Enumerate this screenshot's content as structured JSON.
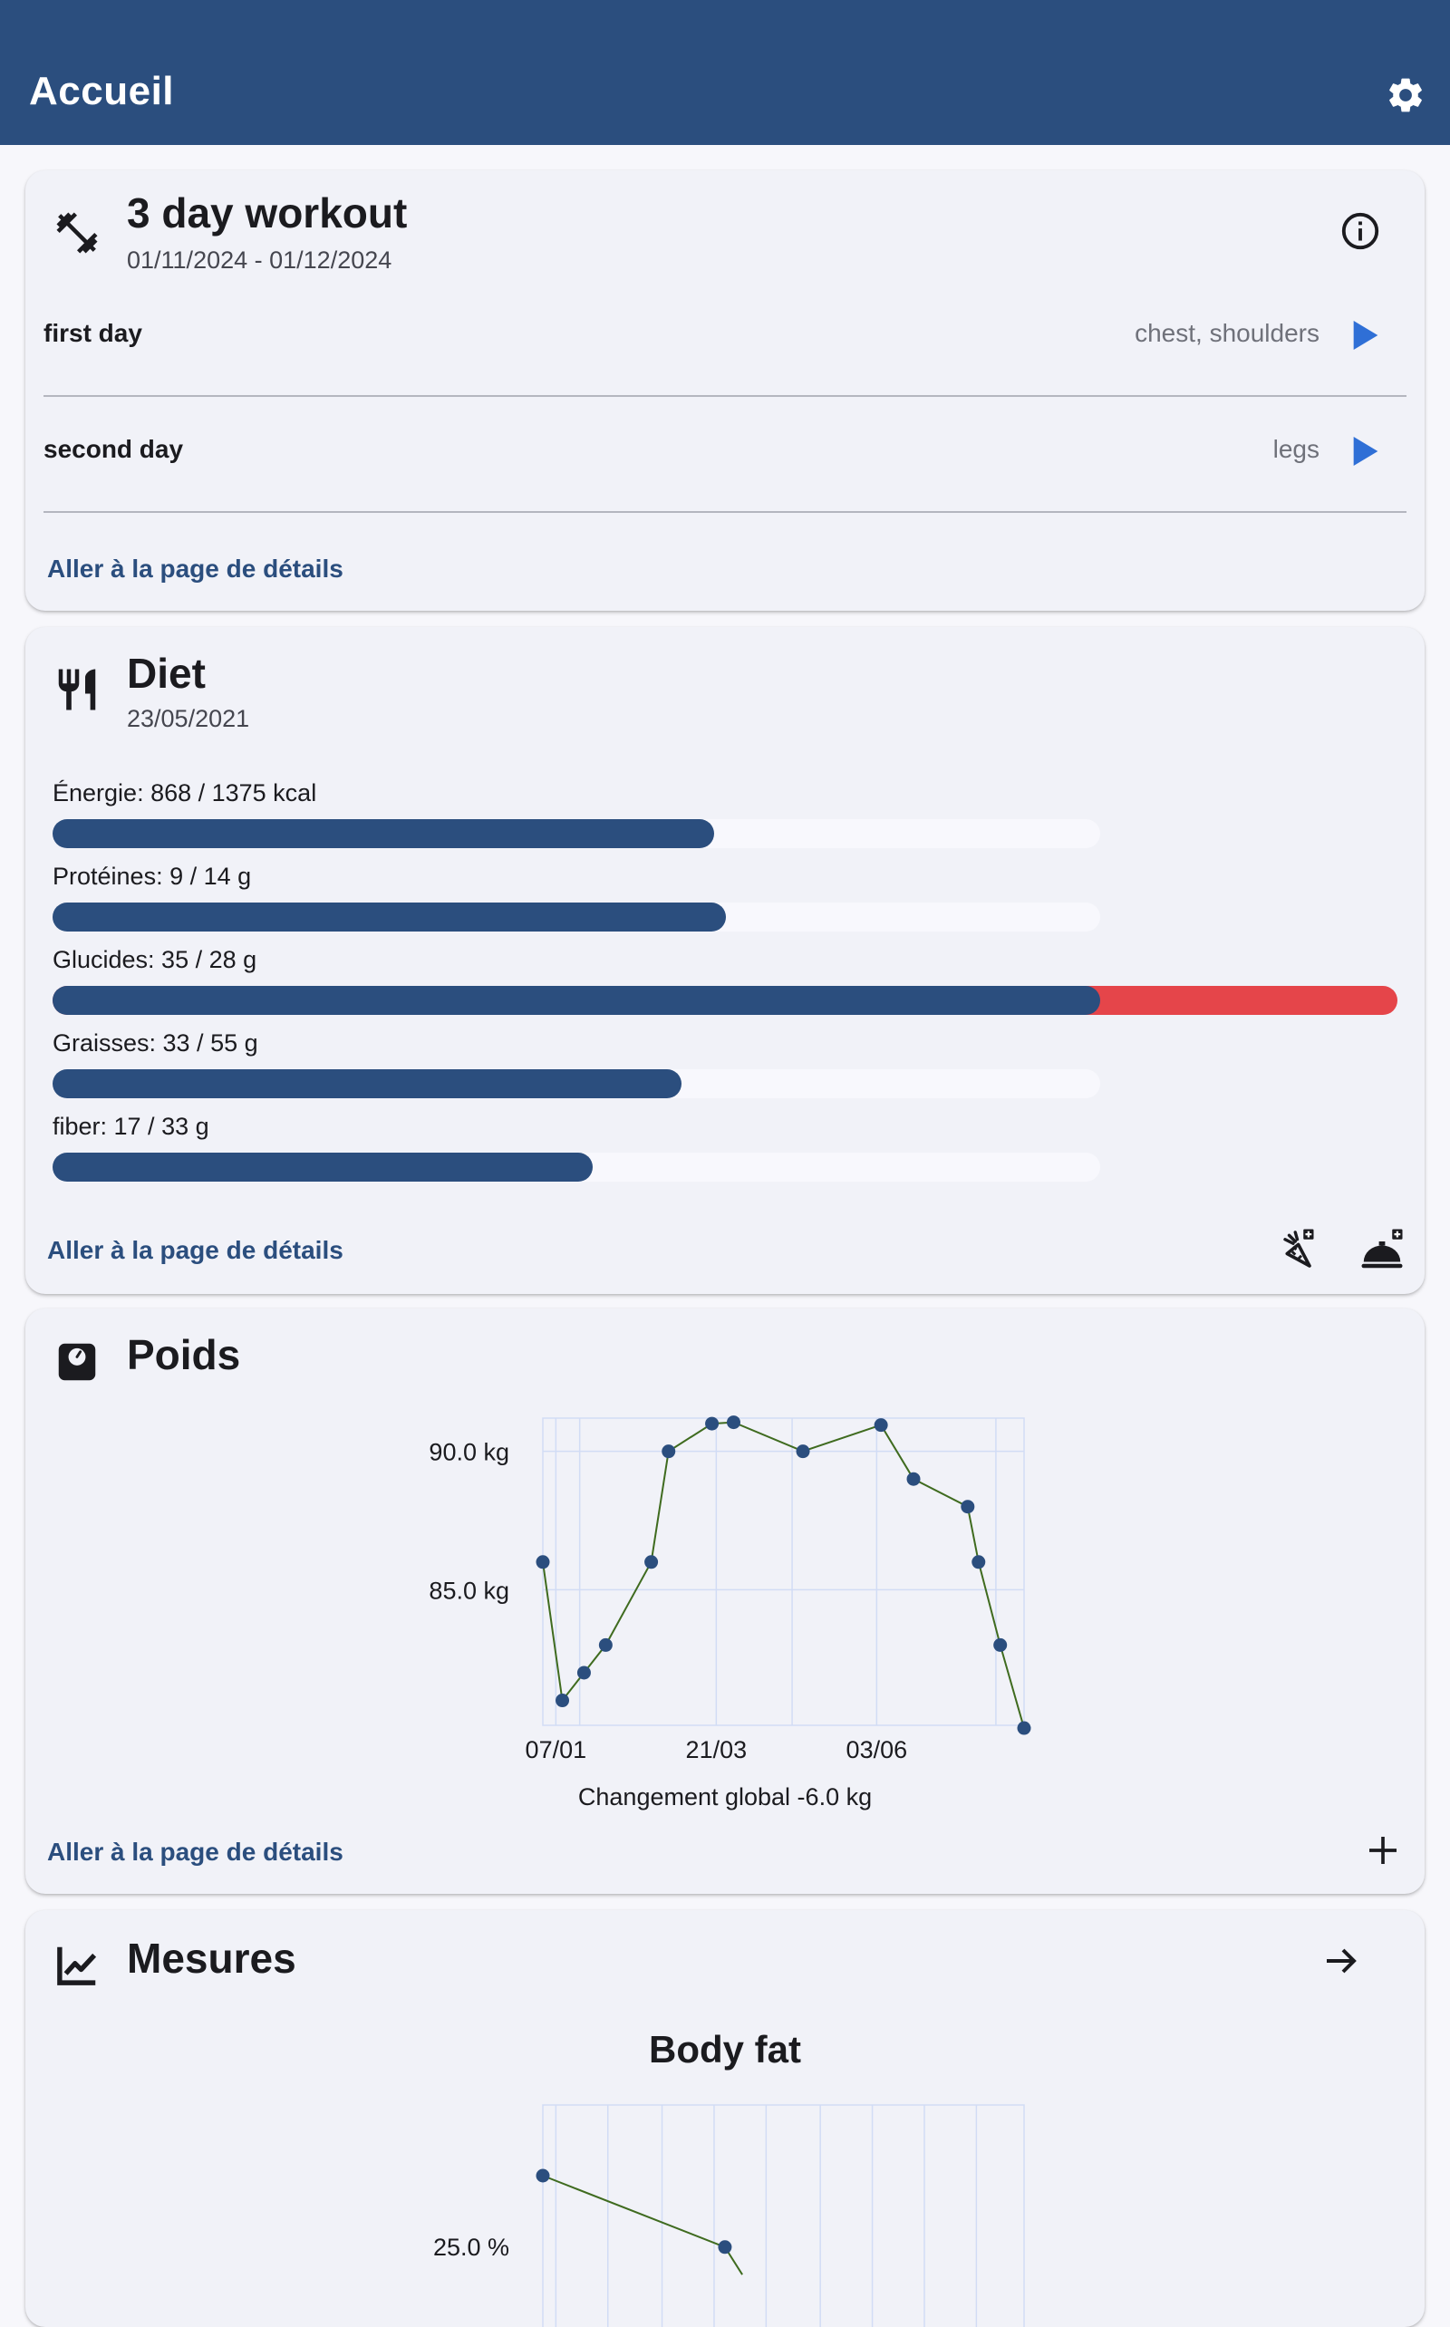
{
  "appbar": {
    "title": "Accueil",
    "settings_icon": "gear-icon"
  },
  "workout": {
    "title": "3 day workout",
    "dates": "01/11/2024 - 01/12/2024",
    "icon": "dumbbell-icon",
    "info_icon": "info-icon",
    "days": [
      {
        "name": "first day",
        "muscles": "chest, shoulders"
      },
      {
        "name": "second day",
        "muscles": "legs"
      }
    ],
    "details_link": "Aller à la page de détails"
  },
  "diet": {
    "title": "Diet",
    "date": "23/05/2021",
    "icon": "fork-knife-icon",
    "nutrients": [
      {
        "label": "Énergie: 868 / 1375 kcal",
        "value": 868,
        "goal": 1375
      },
      {
        "label": "Protéines: 9 / 14 g",
        "value": 9,
        "goal": 14
      },
      {
        "label": "Glucides: 35 / 28 g",
        "value": 35,
        "goal": 28
      },
      {
        "label": "Graisses: 33 / 55 g",
        "value": 33,
        "goal": 55
      },
      {
        "label": "fiber: 17 / 33 g",
        "value": 17,
        "goal": 33
      }
    ],
    "colors": {
      "fill": "#2b4e7e",
      "over": "#e5454a",
      "track": "#f8f8fd"
    },
    "details_link": "Aller à la page de détails",
    "actions": [
      "add-ingredient-icon",
      "add-meal-icon"
    ]
  },
  "weight": {
    "title": "Poids",
    "icon": "scale-icon",
    "details_link": "Aller à la page de détails",
    "add_icon": "plus-icon",
    "chart_data": {
      "type": "line",
      "y_ticks": [
        "90.0 kg",
        "85.0 kg"
      ],
      "x_ticks": [
        "07/01",
        "21/03",
        "03/06"
      ],
      "caption": "Changement global -6.0 kg",
      "y_tick_values": [
        90,
        85
      ],
      "x_tick_values": [
        6,
        80,
        154
      ],
      "xlim": [
        0,
        222
      ],
      "ylim": [
        80.1,
        91.2
      ],
      "x_unit": "day of year",
      "y_unit": "kg",
      "line_color": "#3f6b1f",
      "point_color": "#2b4e7e",
      "points": [
        {
          "x": 0,
          "y": 86.0
        },
        {
          "x": 9,
          "y": 81.0
        },
        {
          "x": 19,
          "y": 82.0
        },
        {
          "x": 29,
          "y": 83.0
        },
        {
          "x": 50,
          "y": 86.0
        },
        {
          "x": 58,
          "y": 90.0
        },
        {
          "x": 78,
          "y": 91.0
        },
        {
          "x": 88,
          "y": 91.05
        },
        {
          "x": 120,
          "y": 90.0
        },
        {
          "x": 156,
          "y": 90.95
        },
        {
          "x": 171,
          "y": 89.0
        },
        {
          "x": 196,
          "y": 88.0
        },
        {
          "x": 201,
          "y": 86.0
        },
        {
          "x": 211,
          "y": 83.0
        },
        {
          "x": 222,
          "y": 80.0
        }
      ]
    }
  },
  "measures": {
    "title": "Mesures",
    "icon": "chart-line-icon",
    "arrow_icon": "arrow-right-icon",
    "chart_data": {
      "type": "line",
      "title": "Body fat",
      "y_ticks": [
        "25.0 %"
      ],
      "y_tick_values": [
        25.0
      ],
      "ylim": [
        22.0,
        27.0
      ],
      "xlim": [
        0,
        222
      ],
      "line_color": "#3f6b1f",
      "point_color": "#2b4e7e",
      "points": [
        {
          "x": 0,
          "y": 26.0
        },
        {
          "x": 84,
          "y": 24.99
        },
        {
          "x": 92,
          "y": 24.6
        }
      ]
    }
  }
}
